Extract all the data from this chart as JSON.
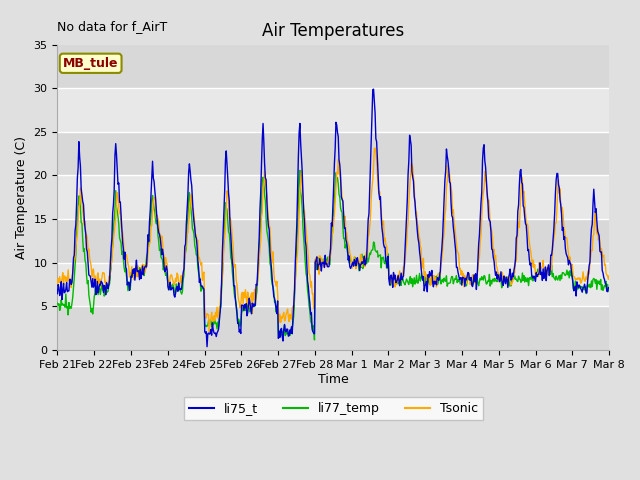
{
  "title": "Air Temperatures",
  "ylabel": "Air Temperature (C)",
  "xlabel": "Time",
  "annotation_text": "No data for f_AirT",
  "legend_box_text": "MB_tule",
  "legend_box_color": "#8b0000",
  "legend_box_bg": "#ffffcc",
  "legend_box_edge": "#8b8b00",
  "ylim": [
    0,
    35
  ],
  "yticks": [
    0,
    5,
    10,
    15,
    20,
    25,
    30,
    35
  ],
  "band_colors": [
    "#e8e8e8",
    "#d8d8d8"
  ],
  "series": {
    "li75_t": {
      "color": "#0000cc",
      "label": "li75_t"
    },
    "li77_temp": {
      "color": "#00bb00",
      "label": "li77_temp"
    },
    "Tsonic": {
      "color": "#ffaa00",
      "label": "Tsonic"
    }
  },
  "fig_bg_color": "#e0e0e0",
  "plot_bg_color": "#e8e8e8",
  "grid_color": "#ffffff",
  "tick_labels": [
    "Feb 21",
    "Feb 22",
    "Feb 23",
    "Feb 24",
    "Feb 25",
    "Feb 26",
    "Feb 27",
    "Feb 28",
    "Mar 1",
    "Mar 2",
    "Mar 3",
    "Mar 4",
    "Mar 5",
    "Mar 6",
    "Mar 7",
    "Mar 8"
  ]
}
